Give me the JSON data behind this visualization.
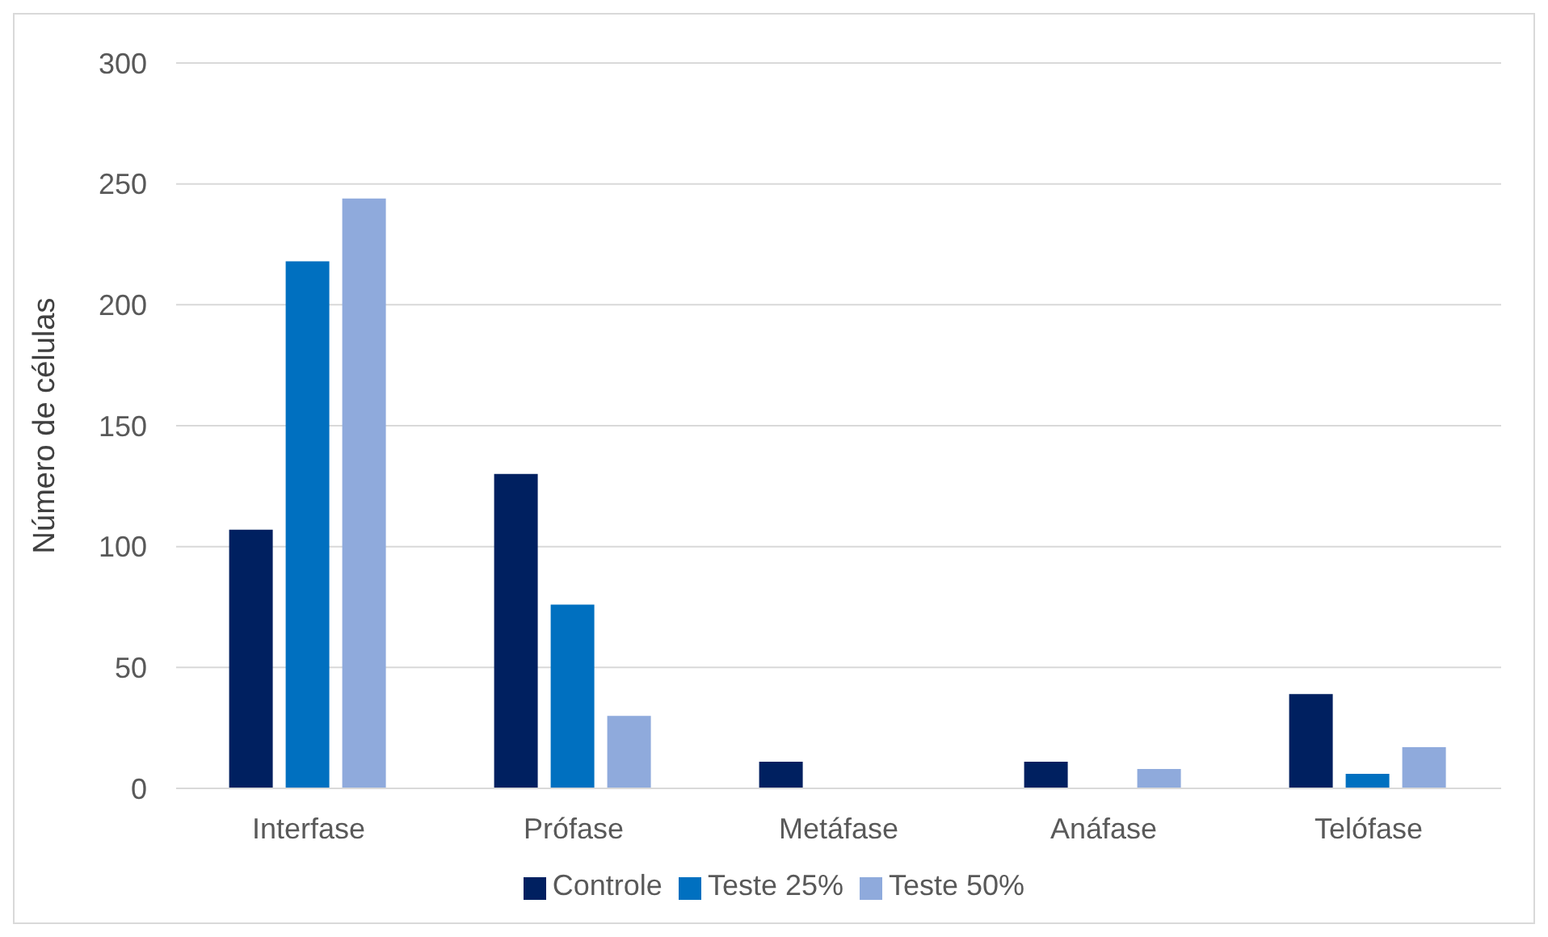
{
  "chart_data": {
    "type": "bar",
    "ylabel": "Número de células",
    "categories": [
      "Interfase",
      "Prófase",
      "Metáfase",
      "Anáfase",
      "Telófase"
    ],
    "series": [
      {
        "name": "Controle",
        "color": "#002060",
        "values": [
          107,
          130,
          11,
          11,
          39
        ]
      },
      {
        "name": "Teste 25%",
        "color": "#0070c0",
        "values": [
          218,
          76,
          0,
          0,
          6
        ]
      },
      {
        "name": "Teste 50%",
        "color": "#8faadc",
        "values": [
          244,
          30,
          0,
          8,
          17
        ]
      }
    ],
    "ylim": [
      0,
      300
    ],
    "yticks": [
      0,
      50,
      100,
      150,
      200,
      250,
      300
    ],
    "grid": "y",
    "legend": "bottom"
  }
}
